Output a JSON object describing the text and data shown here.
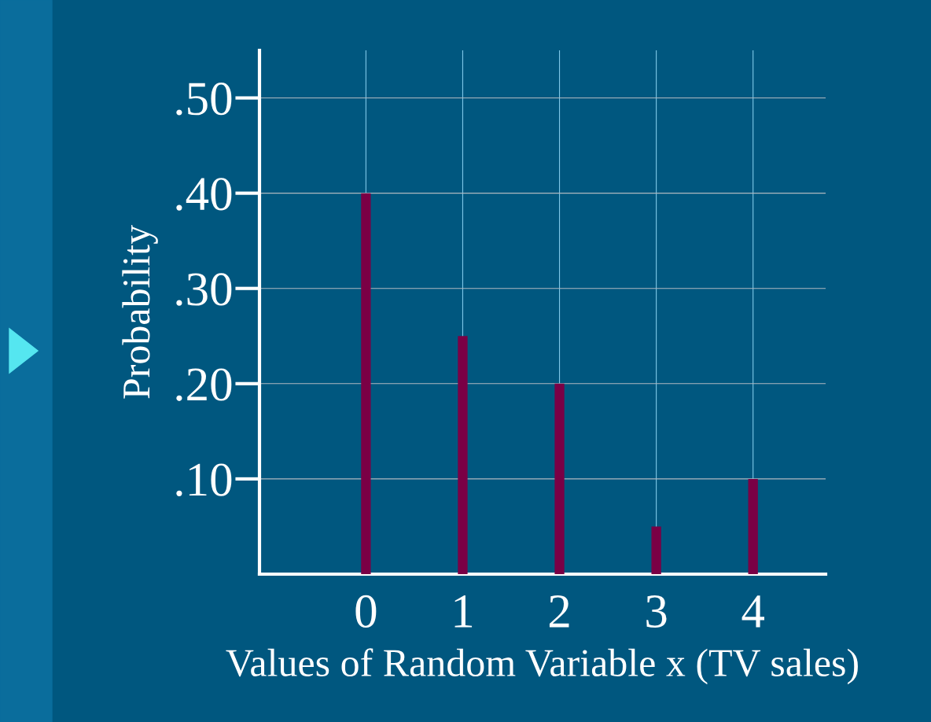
{
  "chart_data": {
    "type": "bar",
    "x": [
      0,
      1,
      2,
      3,
      4
    ],
    "values": [
      0.4,
      0.25,
      0.2,
      0.05,
      0.1
    ],
    "color": "#7a0045",
    "xlabel": "Values of Random Variable x (TV sales)",
    "ylabel": "Probability",
    "xlim": [
      -1.1,
      4.75
    ],
    "xticks": [
      0,
      1,
      2,
      3,
      4
    ],
    "ylim": [
      0,
      0.55
    ],
    "yticks": [
      {
        "value": 0.1,
        "label": ".10"
      },
      {
        "value": 0.2,
        "label": ".20"
      },
      {
        "value": 0.3,
        "label": ".30"
      },
      {
        "value": 0.4,
        "label": ".40"
      },
      {
        "value": 0.5,
        "label": ".50"
      }
    ],
    "grid": true
  }
}
